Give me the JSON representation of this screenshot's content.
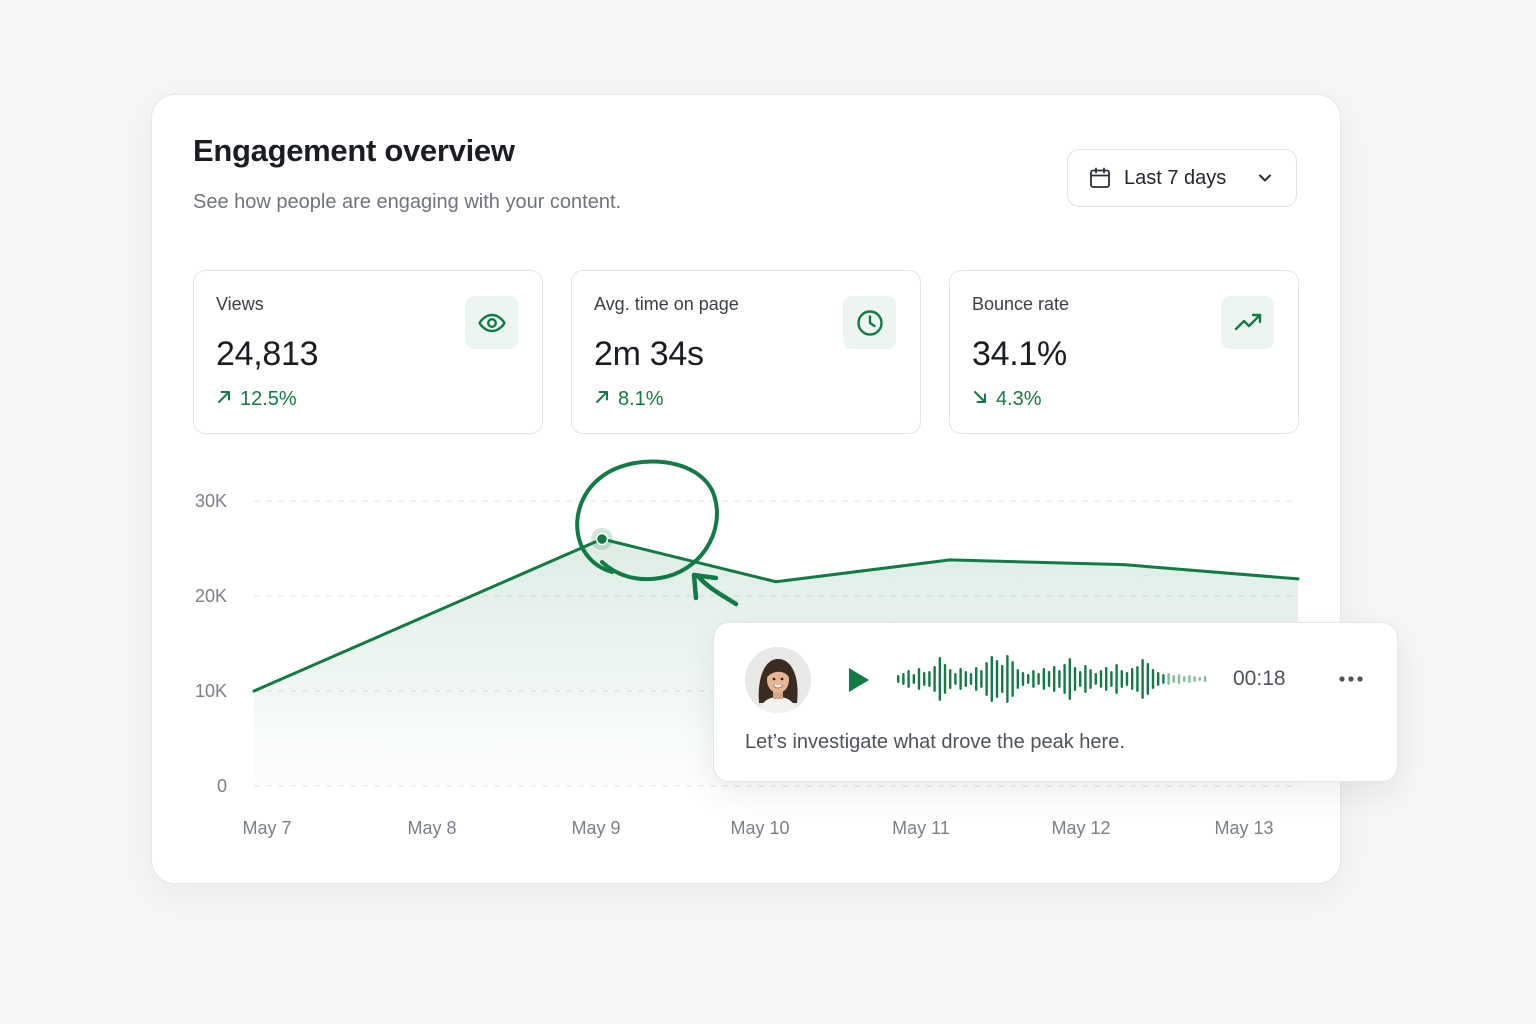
{
  "header": {
    "title": "Engagement overview",
    "subtitle": "See how people are engaging with your content."
  },
  "date_range": {
    "label": "Last 7 days",
    "icon": "calendar-icon",
    "chevron_icon": "chevron-down-icon"
  },
  "stats": [
    {
      "label": "Views",
      "value": "24,813",
      "change": "12.5%",
      "direction": "up",
      "icon": "eye-icon"
    },
    {
      "label": "Avg. time on page",
      "value": "2m 34s",
      "change": "8.1%",
      "direction": "up",
      "icon": "clock-icon"
    },
    {
      "label": "Bounce rate",
      "value": "34.1%",
      "change": "4.3%",
      "direction": "down",
      "icon": "trending-up-icon"
    }
  ],
  "colors": {
    "accent": "#127a45",
    "accent_light": "#ecf5ef",
    "text": "#1a1e23",
    "muted": "#6f747b"
  },
  "chart_data": {
    "type": "area",
    "x": [
      "May 7",
      "May 8",
      "May 9",
      "May 10",
      "May 11",
      "May 12",
      "May 13"
    ],
    "values": [
      10000,
      18000,
      26000,
      21500,
      23800,
      23300,
      21800
    ],
    "y_ticks": [
      "0",
      "10K",
      "20K",
      "30K"
    ],
    "ylim": [
      0,
      30000
    ],
    "grid": true,
    "highlight": {
      "x": "May 9",
      "value": 26000,
      "annotation": "hand-drawn circle with arrow"
    }
  },
  "voice_note": {
    "avatar": "avatar",
    "duration": "00:18",
    "caption": "Let’s investigate what drove the peak here.",
    "play_icon": "play-icon",
    "more_icon": "more-horizontal-icon"
  }
}
